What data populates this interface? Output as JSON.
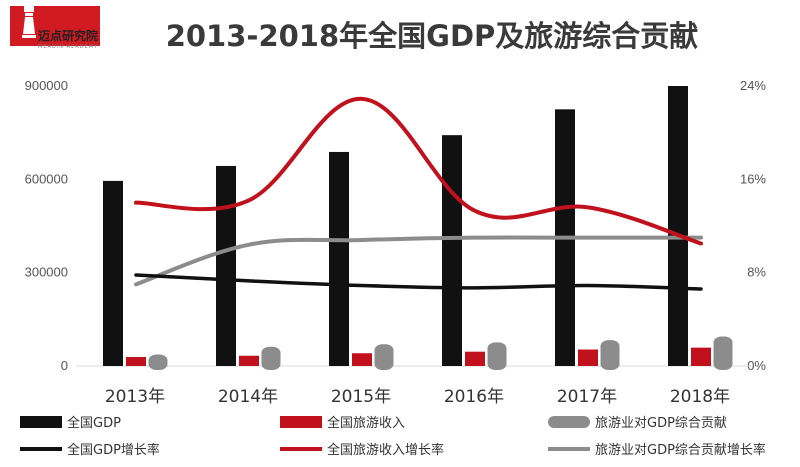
{
  "logo": {
    "name": "迈点研究院",
    "subtitle": "MEADIN ACADEMY"
  },
  "colors": {
    "black": "#111111",
    "red": "#c0111c",
    "gray": "#8c8c8c"
  },
  "chart_data": {
    "type": "bar",
    "title": "2013-2018年全国GDP及旅游综合贡献",
    "categories": [
      "2013年",
      "2014年",
      "2015年",
      "2016年",
      "2017年",
      "2018年"
    ],
    "y_left": {
      "ticks": [
        "0",
        "300000",
        "600000",
        "900000"
      ],
      "range": [
        0,
        900000
      ]
    },
    "y_right": {
      "ticks": [
        "0%",
        "8%",
        "16%",
        "24%"
      ],
      "range": [
        0,
        24
      ]
    },
    "series": [
      {
        "name": "全国GDP",
        "kind": "bar",
        "axis": "left",
        "color": "#111111",
        "values": [
          595000,
          643000,
          688000,
          742000,
          825000,
          900000
        ]
      },
      {
        "name": "全国旅游收入",
        "kind": "bar",
        "axis": "left",
        "color": "#c0111c",
        "values": [
          29000,
          33000,
          41000,
          46000,
          53000,
          59000
        ]
      },
      {
        "name": "旅游业对GDP综合贡献",
        "kind": "bar",
        "axis": "left",
        "color": "#8c8c8c",
        "values": [
          37000,
          62000,
          70000,
          76000,
          83000,
          95000
        ]
      },
      {
        "name": "全国GDP增长率",
        "kind": "line",
        "axis": "right",
        "color": "#111111",
        "values": [
          7.8,
          7.3,
          6.9,
          6.7,
          6.9,
          6.6
        ]
      },
      {
        "name": "全国旅游收入增长率",
        "kind": "line",
        "axis": "right",
        "color": "#c0111c",
        "values": [
          14.0,
          14.2,
          22.9,
          13.3,
          13.6,
          10.5
        ]
      },
      {
        "name": "旅游业对GDP综合贡献增长率",
        "kind": "line",
        "axis": "right",
        "color": "#8c8c8c",
        "values": [
          7.0,
          10.4,
          10.8,
          11.0,
          11.0,
          11.0
        ]
      }
    ],
    "legend": {
      "position": "bottom"
    },
    "grid": false
  }
}
